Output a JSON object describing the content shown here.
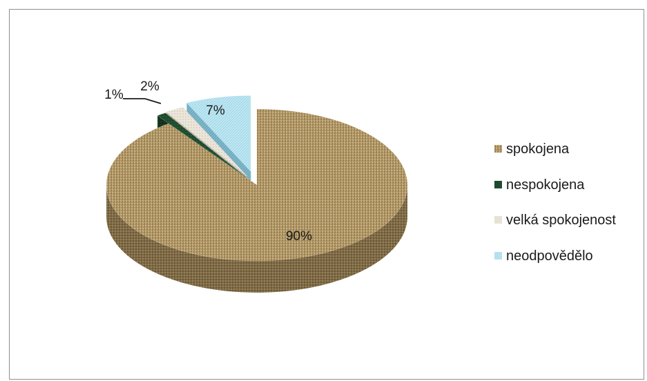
{
  "chart_data": {
    "type": "pie",
    "style": "3d-exploded",
    "categories": [
      "spokojena",
      "nespokojena",
      "velká spokojenost",
      "neodpovědělo"
    ],
    "values": [
      90,
      1,
      2,
      7
    ],
    "data_labels": [
      "90%",
      "1%",
      "2%",
      "7%"
    ],
    "colors": [
      "#b49a68",
      "#1f4a2e",
      "#e8e2d6",
      "#a9dbea"
    ],
    "legend": {
      "position": "right",
      "entries": [
        "spokojena",
        "nespokojena",
        "velká spokojenost",
        "neodpovědělo"
      ]
    }
  }
}
